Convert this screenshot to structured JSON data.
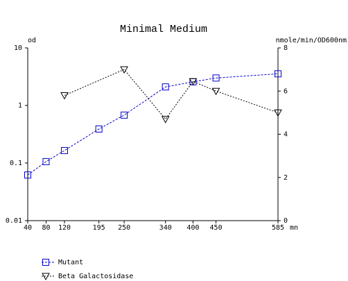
{
  "chart_data": {
    "type": "line",
    "title": "Minimal Medium",
    "y_label": "od",
    "y2_label": "nmole/min/OD600nm",
    "x_label": "mn",
    "y_scale": "log",
    "xlim": [
      40,
      585
    ],
    "xticks": [
      40,
      80,
      120,
      195,
      250,
      340,
      400,
      450,
      585
    ],
    "ylim": [
      0.01,
      10
    ],
    "yticks": [
      0.01,
      0.1,
      1,
      10
    ],
    "y2lim": [
      0,
      8
    ],
    "y2ticks": [
      0,
      2,
      4,
      6,
      8
    ],
    "series": [
      {
        "name": "Mutant",
        "color": "#0000cc",
        "marker": "square",
        "line_style": "dashed",
        "x": [
          40,
          80,
          120,
          195,
          250,
          340,
          400,
          450,
          585
        ],
        "values": [
          0.062,
          0.106,
          0.165,
          0.39,
          0.68,
          2.1,
          2.57,
          3.0,
          3.55
        ]
      },
      {
        "name": "Beta Galactosidase",
        "color": "#000000",
        "marker": "triangle-down",
        "line_style": "dotted",
        "axis": "y2",
        "x": [
          120,
          250,
          340,
          400,
          450,
          585
        ],
        "values": [
          5.8,
          7.0,
          4.7,
          6.45,
          6.0,
          5.0
        ]
      }
    ]
  }
}
